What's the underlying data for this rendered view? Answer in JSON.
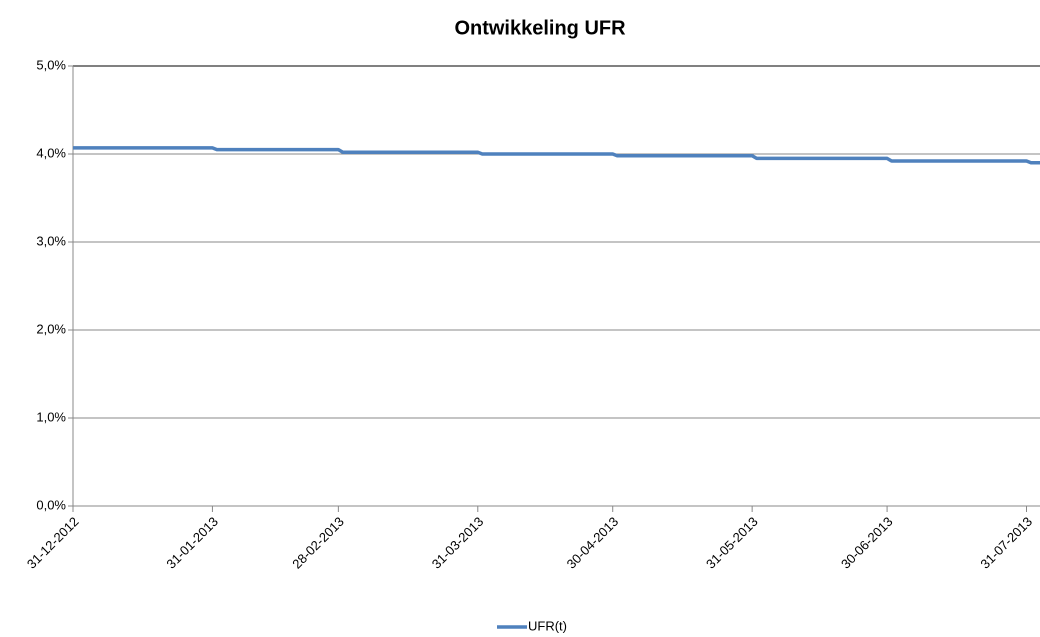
{
  "chart_data": {
    "type": "line",
    "title": "Ontwikkeling UFR",
    "x": [
      "31-12-2012",
      "31-01-2013",
      "01-02-2013",
      "28-02-2013",
      "01-03-2013",
      "31-03-2013",
      "01-04-2013",
      "30-04-2013",
      "01-05-2013",
      "31-05-2013",
      "01-06-2013",
      "30-06-2013",
      "01-07-2013",
      "31-07-2013",
      "01-08-2013",
      "03-08-2013"
    ],
    "series": [
      {
        "name": "UFR(t)",
        "color": "#4f81bd",
        "values": [
          4.07,
          4.07,
          4.05,
          4.05,
          4.02,
          4.02,
          4.0,
          4.0,
          3.98,
          3.98,
          3.95,
          3.95,
          3.92,
          3.92,
          3.9,
          3.9
        ]
      }
    ],
    "xlim": [
      "31-12-2012",
      "03-08-2013"
    ],
    "xticks": [
      "31-12-2012",
      "31-01-2013",
      "28-02-2013",
      "31-03-2013",
      "30-04-2013",
      "31-05-2013",
      "30-06-2013",
      "31-07-2013"
    ],
    "ylim": [
      0,
      5
    ],
    "yticks": [
      {
        "value": 0,
        "label": "0,0%"
      },
      {
        "value": 1,
        "label": "1,0%"
      },
      {
        "value": 2,
        "label": "2,0%"
      },
      {
        "value": 3,
        "label": "3,0%"
      },
      {
        "value": 4,
        "label": "4,0%"
      },
      {
        "value": 5,
        "label": "5,0%"
      }
    ],
    "grid": true,
    "legend": "bottom"
  }
}
